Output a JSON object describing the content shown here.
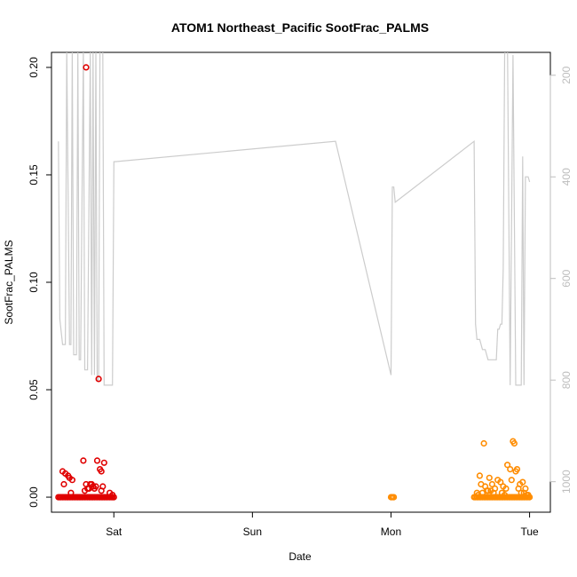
{
  "chart_data": {
    "type": "scatter",
    "title": "ATOM1 Northeast_Pacific SootFrac_PALMS",
    "xlabel": "Date",
    "ylabel": "SootFrac_PALMS",
    "xlim_days": [
      -0.45,
      3.15
    ],
    "ylim": [
      -0.007,
      0.207
    ],
    "y_ticks": [
      0.0,
      0.05,
      0.1,
      0.15,
      0.2
    ],
    "y_tick_labels": [
      "0.00",
      "0.05",
      "0.10",
      "0.15",
      "0.20"
    ],
    "x_ticks": [
      0,
      1,
      2,
      3
    ],
    "x_tick_labels": [
      "Sat",
      "Sun",
      "Mon",
      "Tue"
    ],
    "right_axis": {
      "label": "",
      "reversed": true,
      "ticks": [
        200,
        400,
        600,
        800,
        1000
      ],
      "tick_labels": [
        "200",
        "400",
        "600",
        "800",
        "1000"
      ],
      "lim": [
        155,
        1060
      ],
      "color": "#bdbdbd"
    },
    "grid": false,
    "series": [
      {
        "color": "#e00000",
        "marker": "open-circle",
        "x": [
          -0.4,
          -0.39,
          -0.38,
          -0.37,
          -0.36,
          -0.35,
          -0.34,
          -0.33,
          -0.32,
          -0.31,
          -0.3,
          -0.29,
          -0.28,
          -0.27,
          -0.26,
          -0.25,
          -0.24,
          -0.23,
          -0.22,
          -0.21,
          -0.2,
          -0.19,
          -0.18,
          -0.17,
          -0.16,
          -0.15,
          -0.14,
          -0.13,
          -0.12,
          -0.11,
          -0.1,
          -0.09,
          -0.08,
          -0.07,
          -0.06,
          -0.05,
          -0.04,
          -0.03,
          -0.02,
          -0.01,
          0.0,
          -0.2,
          -0.11,
          -0.37,
          -0.35,
          -0.33,
          -0.36,
          -0.32,
          -0.3,
          -0.22,
          -0.17,
          -0.16,
          -0.15,
          -0.12,
          -0.1,
          -0.09,
          -0.07,
          -0.03,
          -0.2,
          -0.19,
          -0.13,
          -0.14,
          -0.08,
          -0.09,
          -0.18,
          -0.21,
          -0.01,
          -0.31
        ],
        "y": [
          0,
          0,
          0,
          0,
          0,
          0,
          0,
          0,
          0,
          0,
          0,
          0,
          0,
          0,
          0,
          0,
          0,
          0,
          0,
          0,
          0,
          0,
          0,
          0,
          0,
          0,
          0,
          0,
          0,
          0,
          0,
          0,
          0,
          0,
          0,
          0,
          0,
          0,
          0,
          0,
          0,
          0.2,
          0.055,
          0.012,
          0.011,
          0.01,
          0.006,
          0.009,
          0.008,
          0.017,
          0.006,
          0.006,
          0.005,
          0.017,
          0.013,
          0.012,
          0.016,
          0.002,
          0.006,
          0.004,
          0.005,
          0.004,
          0.005,
          0.003,
          0.004,
          0.003,
          0.001,
          0.002
        ]
      },
      {
        "color": "#ff8c00",
        "marker": "open-circle",
        "x": [
          2.0,
          2.01,
          2.02,
          2.6,
          2.61,
          2.62,
          2.63,
          2.64,
          2.65,
          2.66,
          2.67,
          2.68,
          2.69,
          2.7,
          2.71,
          2.72,
          2.73,
          2.74,
          2.75,
          2.76,
          2.77,
          2.78,
          2.79,
          2.8,
          2.81,
          2.82,
          2.83,
          2.84,
          2.85,
          2.86,
          2.87,
          2.88,
          2.89,
          2.9,
          2.91,
          2.92,
          2.93,
          2.94,
          2.95,
          2.96,
          2.97,
          2.98,
          2.99,
          3.0,
          2.67,
          2.88,
          2.89,
          2.64,
          2.71,
          2.77,
          2.84,
          2.86,
          2.9,
          2.91,
          2.65,
          2.68,
          2.73,
          2.75,
          2.79,
          2.81,
          2.83,
          2.87,
          2.93,
          2.95,
          2.97,
          2.7,
          2.8,
          2.92,
          2.62,
          2.63,
          2.69,
          2.74,
          2.96,
          2.98,
          2.66,
          2.72,
          2.82,
          2.94,
          2.99
        ],
        "y": [
          0,
          0,
          0,
          0,
          0,
          0,
          0,
          0,
          0,
          0,
          0,
          0,
          0,
          0,
          0,
          0,
          0,
          0,
          0,
          0,
          0,
          0,
          0,
          0,
          0,
          0,
          0,
          0,
          0,
          0,
          0,
          0,
          0,
          0,
          0,
          0,
          0,
          0,
          0,
          0,
          0,
          0,
          0,
          0,
          0.025,
          0.026,
          0.025,
          0.01,
          0.009,
          0.008,
          0.015,
          0.013,
          0.012,
          0.013,
          0.006,
          0.005,
          0.006,
          0.004,
          0.007,
          0.005,
          0.004,
          0.008,
          0.006,
          0.007,
          0.004,
          0.003,
          0.002,
          0.004,
          0.002,
          0.001,
          0.003,
          0.002,
          0.002,
          0.001,
          0.002,
          0.003,
          0.001,
          0.002,
          0.001
        ]
      }
    ],
    "altitude_line": {
      "color": "#cccccc",
      "x": [
        -0.4,
        -0.39,
        -0.37,
        -0.35,
        -0.34,
        -0.32,
        -0.31,
        -0.3,
        -0.29,
        -0.27,
        -0.26,
        -0.25,
        -0.24,
        -0.22,
        -0.21,
        -0.19,
        -0.17,
        -0.16,
        -0.15,
        -0.14,
        -0.13,
        -0.12,
        -0.11,
        -0.1,
        -0.08,
        -0.07,
        -0.06,
        -0.05,
        -0.04,
        -0.03,
        -0.02,
        -0.01,
        0.0,
        0.01,
        1.6,
        2.0,
        2.01,
        2.02,
        2.03,
        2.6,
        2.61,
        2.62,
        2.64,
        2.66,
        2.68,
        2.7,
        2.73,
        2.74,
        2.75,
        2.76,
        2.77,
        2.78,
        2.79,
        2.8,
        2.81,
        2.82,
        2.84,
        2.86,
        2.88,
        2.9,
        2.91,
        2.92,
        2.93,
        2.94,
        2.95,
        2.96,
        2.97,
        2.98,
        2.99,
        3.0
      ],
      "y": [
        330,
        680,
        730,
        730,
        150,
        730,
        730,
        150,
        750,
        750,
        150,
        760,
        760,
        150,
        780,
        780,
        150,
        790,
        150,
        790,
        150,
        800,
        800,
        150,
        150,
        810,
        810,
        810,
        810,
        810,
        810,
        810,
        370,
        370,
        330,
        790,
        420,
        420,
        450,
        330,
        690,
        720,
        720,
        740,
        740,
        760,
        760,
        760,
        760,
        760,
        700,
        700,
        690,
        690,
        580,
        160,
        120,
        810,
        160,
        810,
        810,
        810,
        810,
        810,
        360,
        810,
        400,
        400,
        400,
        410
      ],
      "ylim_reversed": [
        155,
        1060
      ]
    }
  }
}
